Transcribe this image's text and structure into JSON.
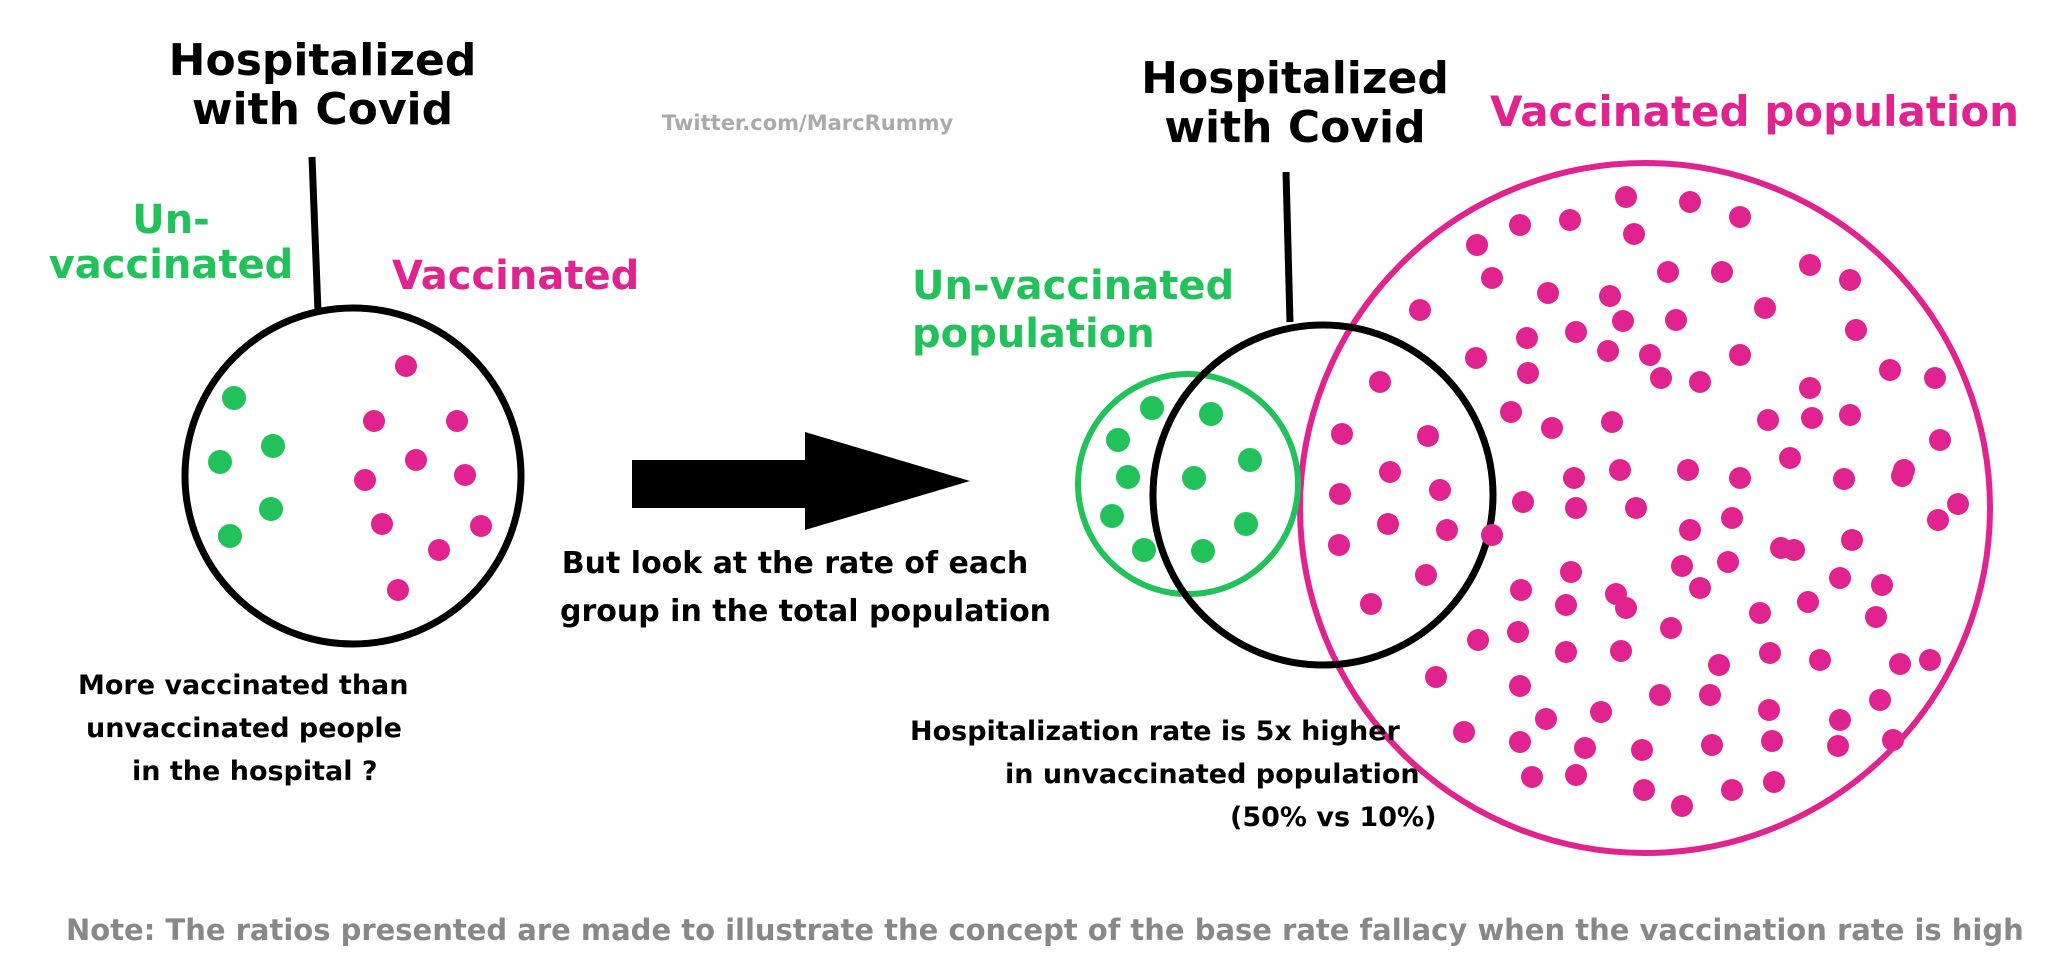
{
  "watermark": "Twitter.com/MarcRummy",
  "colors": {
    "green": "#22c25a",
    "pink": "#e0238f",
    "black": "#000000",
    "note_gray": "#888888"
  },
  "left": {
    "hospital_title_line1": "Hospitalized",
    "hospital_title_line2": "with Covid",
    "unvaccinated_line1": "Un-",
    "unvaccinated_line2": "vaccinated",
    "vaccinated_label": "Vaccinated",
    "question_line1": "More vaccinated than",
    "question_line2": "unvaccinated people",
    "question_line3": "in the hospital ?"
  },
  "middle": {
    "arrow_caption_line1": "But look at the rate of each",
    "arrow_caption_line2": "group in the total population"
  },
  "right": {
    "hospital_title_line1": "Hospitalized",
    "hospital_title_line2": "with Covid",
    "unvaccinated_line1": "Un-vaccinated",
    "unvaccinated_line2": "population",
    "vaccinated_population_label": "Vaccinated population",
    "rate_line1": "Hospitalization rate is 5x higher",
    "rate_line2": "in unvaccinated population",
    "rate_line3": "(50% vs 10%)"
  },
  "note": "Note:  The ratios presented are made to illustrate the concept of the base rate fallacy when the vaccination rate is high"
}
